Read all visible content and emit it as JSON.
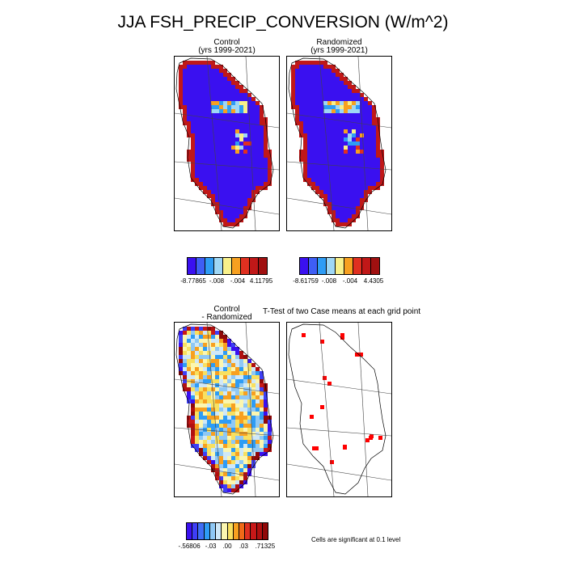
{
  "title": "JJA FSH_PRECIP_CONVERSION (W/m^2)",
  "panels": {
    "control": {
      "line1": "Control",
      "line2": "(yrs 1999-2021)"
    },
    "randomized": {
      "line1": "Randomized",
      "line2": "(yrs 1999-2021)"
    },
    "diff": {
      "line1": "Control",
      "line2": "- Randomized"
    },
    "ttest": {
      "title": "T-Test of two Case means at each grid point"
    }
  },
  "colorbars": {
    "control": {
      "colors": [
        "#3a10f0",
        "#3e5ef5",
        "#2e9cf5",
        "#9fd7f5",
        "#f8f08a",
        "#f7a020",
        "#e03020",
        "#c01818",
        "#a01010"
      ],
      "labels": [
        "-8.77865",
        "-.008",
        "-.004",
        "4.11795"
      ]
    },
    "randomized": {
      "colors": [
        "#3a10f0",
        "#3e5ef5",
        "#2e9cf5",
        "#9fd7f5",
        "#f8f08a",
        "#f7a020",
        "#e03020",
        "#c01818",
        "#a01010"
      ],
      "labels": [
        "-8.61759",
        "-.008",
        "-.004",
        "4.4305"
      ]
    },
    "diff": {
      "colors": [
        "#3a10f0",
        "#3e3ef5",
        "#3e6ef5",
        "#2e9cf5",
        "#8fc8f5",
        "#cfe8f8",
        "#fbf6b0",
        "#f8e060",
        "#f7a020",
        "#f06a18",
        "#e03020",
        "#c81818",
        "#b01010",
        "#900808"
      ],
      "labels": [
        "-.56806",
        "-.03",
        ".00",
        ".03",
        ".71325"
      ]
    }
  },
  "note": "Cells are significant at 0.1 level",
  "chart_data": [
    {
      "type": "heatmap",
      "title": "Control (yrs 1999-2021)",
      "color_range": [
        -8.77865,
        4.11795
      ],
      "colorbar_labels": [
        "-8.77865",
        "-.008",
        "-.004",
        "4.11795"
      ]
    },
    {
      "type": "heatmap",
      "title": "Randomized (yrs 1999-2021)",
      "color_range": [
        -8.61759,
        4.4305
      ],
      "colorbar_labels": [
        "-8.61759",
        "-.008",
        "-.004",
        "4.4305"
      ]
    },
    {
      "type": "heatmap",
      "title": "Control - Randomized",
      "color_range": [
        -0.56806,
        0.71325
      ],
      "colorbar_labels": [
        "-.56806",
        "-.03",
        ".00",
        ".03",
        ".71325"
      ]
    },
    {
      "type": "heatmap",
      "title": "T-Test of two Case means at each grid point",
      "legend": "Cells are significant at 0.1 level"
    }
  ]
}
